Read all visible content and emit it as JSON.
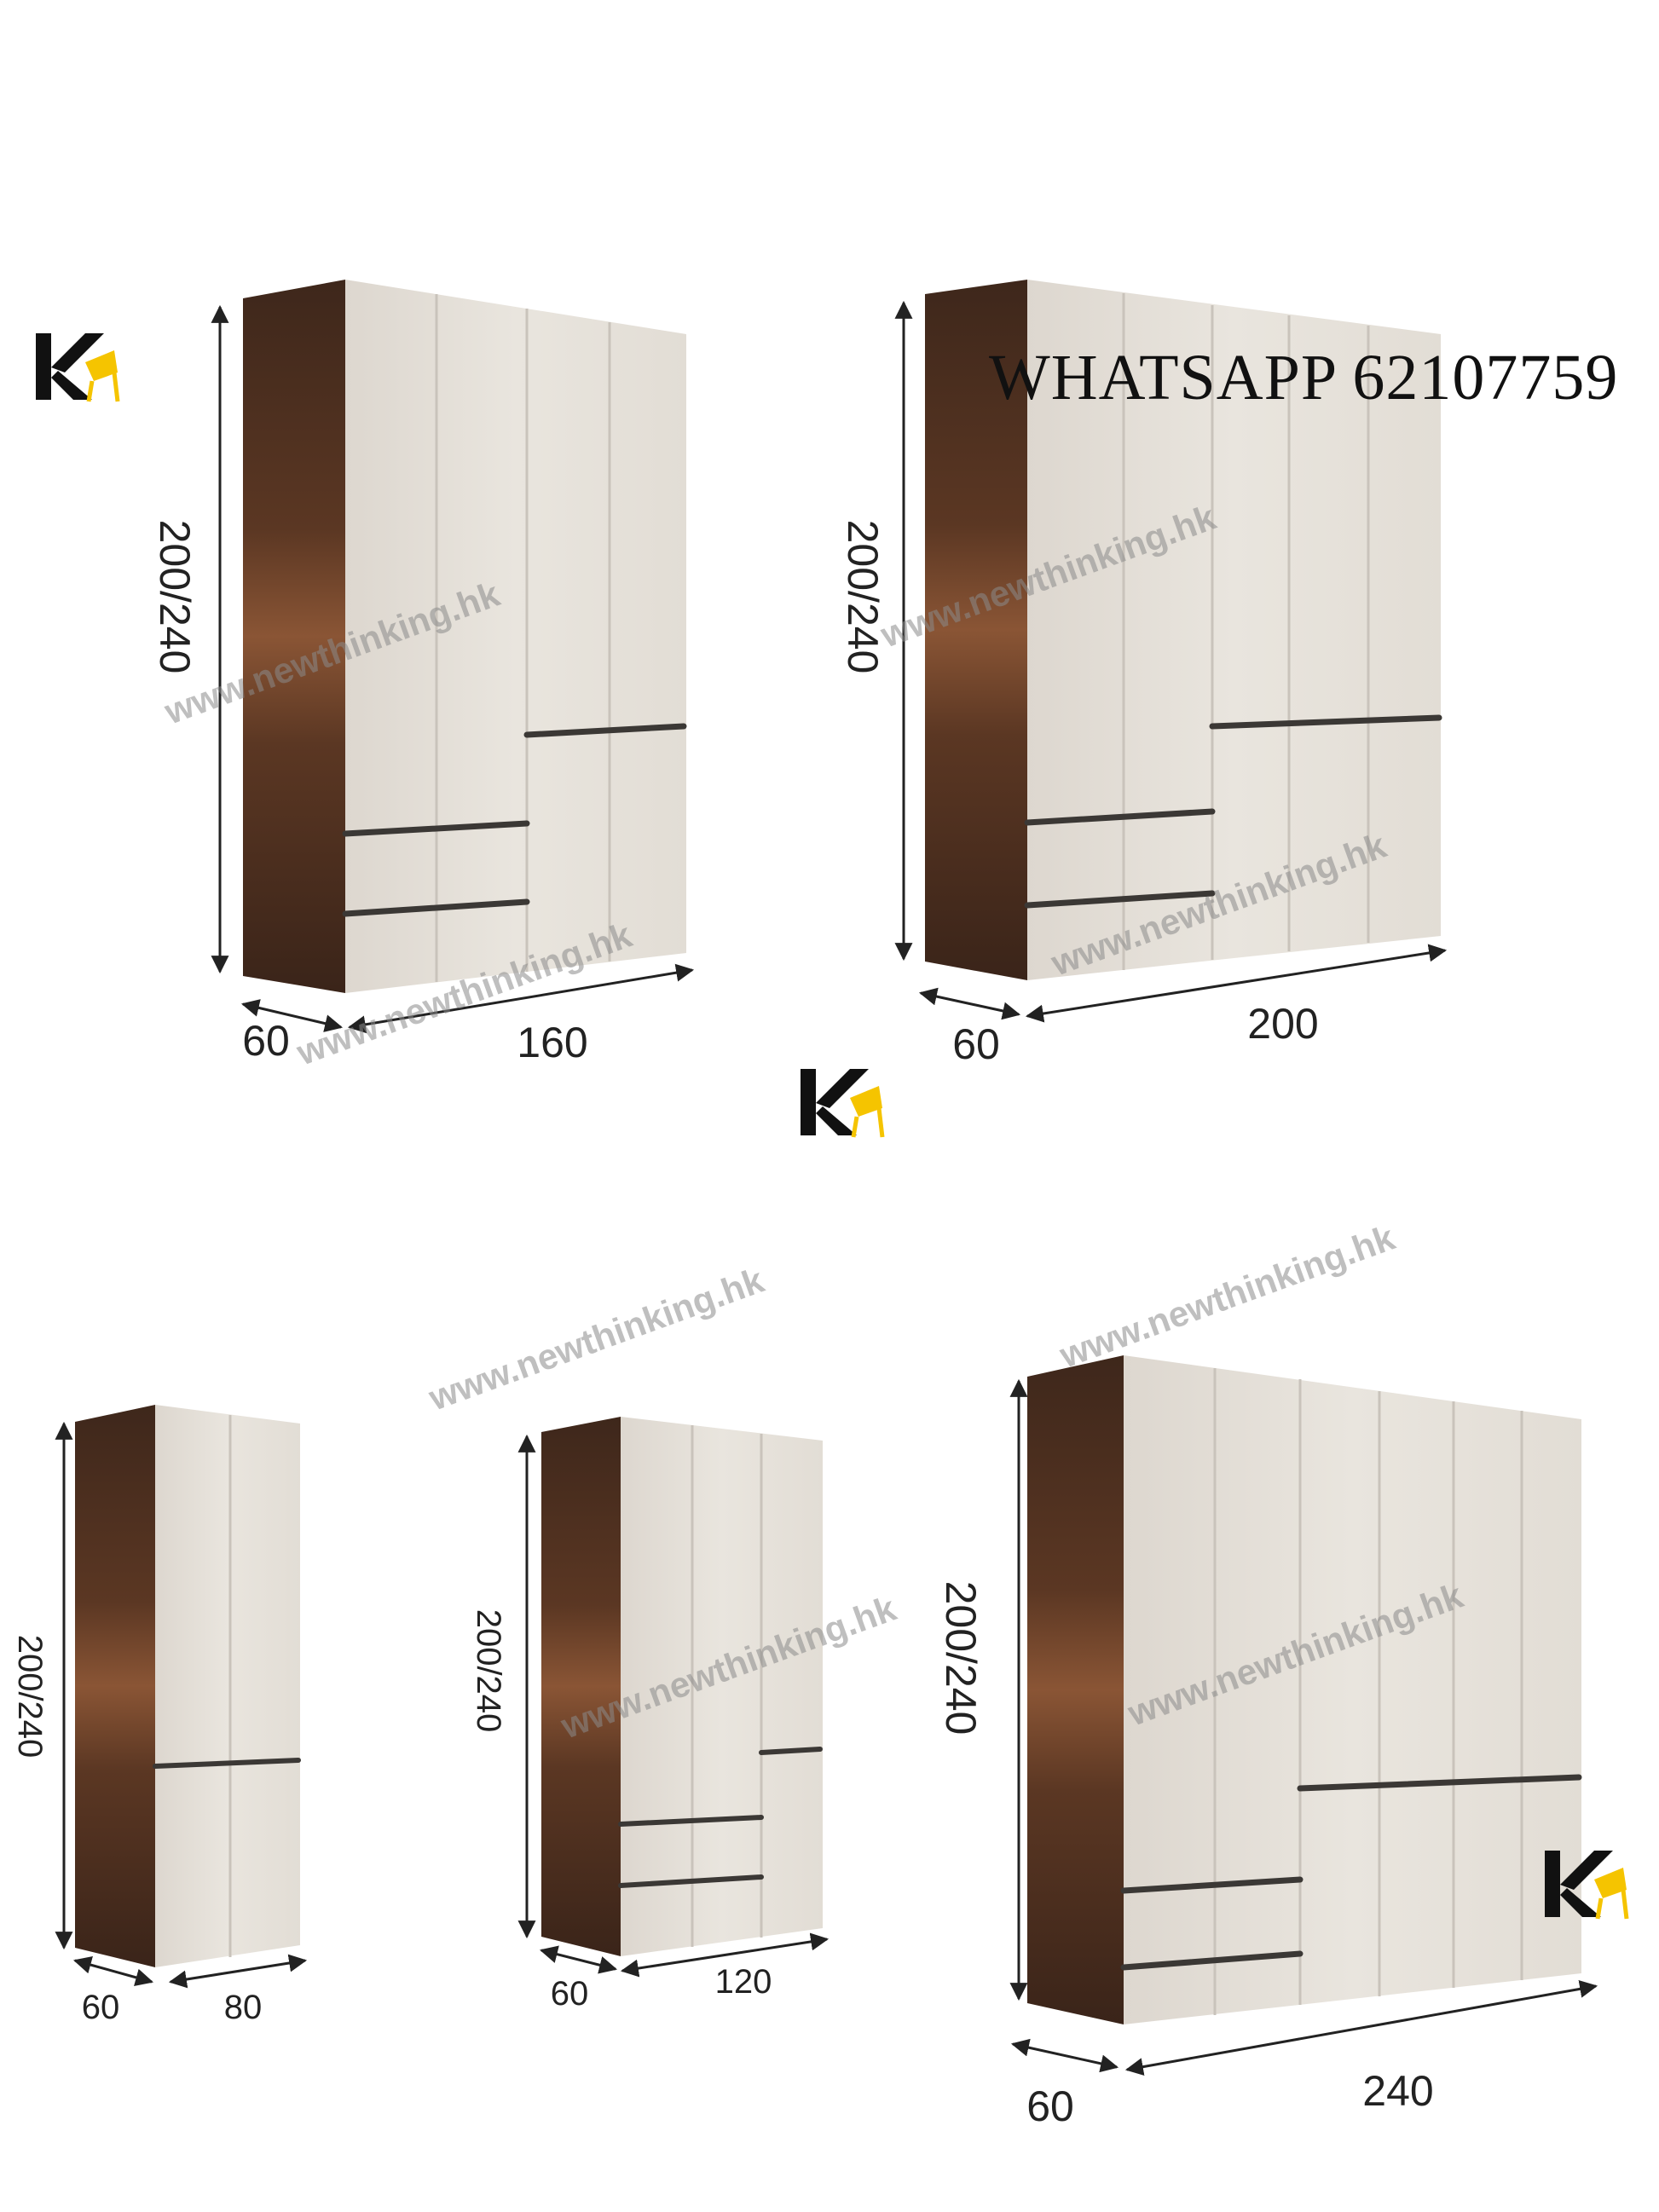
{
  "contact": {
    "whatsapp": "WHATSAPP 62107759"
  },
  "watermark": "www.newthinking.hk",
  "logo_letter": "K",
  "colors": {
    "wood_dark": "#3a2419",
    "wood_mid": "#7a4a2e",
    "panel": "#e6e1da",
    "handle": "#3b3835",
    "logo_yellow": "#f5c400"
  },
  "wardrobes": [
    {
      "name": "wardrobe-160",
      "height_label": "200/240",
      "depth_label": "60",
      "width_label": "160"
    },
    {
      "name": "wardrobe-200",
      "height_label": "200/240",
      "depth_label": "60",
      "width_label": "200"
    },
    {
      "name": "wardrobe-80",
      "height_label": "200/240",
      "depth_label": "60",
      "width_label": "80"
    },
    {
      "name": "wardrobe-120",
      "height_label": "200/240",
      "depth_label": "60",
      "width_label": "120"
    },
    {
      "name": "wardrobe-240",
      "height_label": "200/240",
      "depth_label": "60",
      "width_label": "240"
    }
  ]
}
